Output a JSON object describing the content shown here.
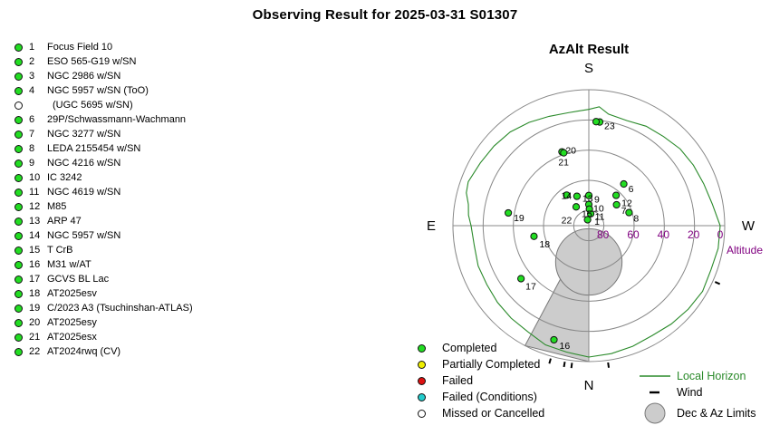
{
  "title": "Observing Result for 2025-03-31 S01307",
  "targets": [
    {
      "num": "1",
      "name": "Focus Field 10",
      "status": "completed"
    },
    {
      "num": "2",
      "name": "ESO 565-G19 w/SN",
      "status": "completed"
    },
    {
      "num": "3",
      "name": "NGC 2986 w/SN",
      "status": "completed"
    },
    {
      "num": "4",
      "name": "NGC 5957 w/SN (ToO)",
      "status": "completed"
    },
    {
      "num": "",
      "name": "(UGC 5695 w/SN)",
      "status": "missed"
    },
    {
      "num": "6",
      "name": "29P/Schwassmann-Wachmann",
      "status": "completed"
    },
    {
      "num": "7",
      "name": "NGC 3277 w/SN",
      "status": "completed"
    },
    {
      "num": "8",
      "name": "LEDA 2155454 w/SN",
      "status": "completed"
    },
    {
      "num": "9",
      "name": "NGC 4216 w/SN",
      "status": "completed"
    },
    {
      "num": "10",
      "name": "IC 3242",
      "status": "completed"
    },
    {
      "num": "11",
      "name": "NGC 4619 w/SN",
      "status": "completed"
    },
    {
      "num": "12",
      "name": "M85",
      "status": "completed"
    },
    {
      "num": "13",
      "name": "ARP 47",
      "status": "completed"
    },
    {
      "num": "14",
      "name": "NGC 5957 w/SN",
      "status": "completed"
    },
    {
      "num": "15",
      "name": "T CrB",
      "status": "completed"
    },
    {
      "num": "16",
      "name": "M31 w/AT",
      "status": "completed"
    },
    {
      "num": "17",
      "name": "GCVS BL Lac",
      "status": "completed"
    },
    {
      "num": "18",
      "name": "AT2025esv",
      "status": "completed"
    },
    {
      "num": "19",
      "name": "C/2023 A3 (Tsuchinshan-ATLAS)",
      "status": "completed"
    },
    {
      "num": "20",
      "name": "AT2025esy",
      "status": "completed"
    },
    {
      "num": "21",
      "name": "AT2025esx",
      "status": "completed"
    },
    {
      "num": "22",
      "name": "AT2024rwq (CV)",
      "status": "completed"
    }
  ],
  "status_colors": {
    "completed": "#22dd22",
    "partial": "#eeee00",
    "failed": "#dd1111",
    "failed_conditions": "#22cccc",
    "missed": "#ffffff"
  },
  "chart": {
    "title": "AzAlt Result",
    "cardinals": {
      "S": "S",
      "N": "N",
      "E": "E",
      "W": "W"
    },
    "altitude_label": "Altitude",
    "alt_ticks": [
      "80",
      "60",
      "40",
      "20",
      "0"
    ],
    "horizon_color": "#2a8a2a",
    "limit_color": "#cccccc",
    "alt_label_color": "#800080"
  },
  "chart_data": {
    "type": "scatter",
    "projection": "polar az-alt, zenith at center, south up, west right",
    "radial_axis": {
      "label": "Altitude",
      "ticks": [
        80,
        60,
        40,
        20,
        0
      ],
      "unit": "deg"
    },
    "points": [
      {
        "label": "1",
        "az": 189,
        "alt": 82
      },
      {
        "label": "6",
        "az": 220,
        "alt": 54
      },
      {
        "label": "7",
        "az": 233,
        "alt": 67
      },
      {
        "label": "8",
        "az": 252,
        "alt": 62
      },
      {
        "label": "9",
        "az": 180,
        "alt": 70
      },
      {
        "label": "10",
        "az": 180,
        "alt": 76
      },
      {
        "label": "11",
        "az": 182,
        "alt": 79
      },
      {
        "label": "12",
        "az": 222,
        "alt": 63
      },
      {
        "label": "13",
        "az": 158,
        "alt": 69
      },
      {
        "label": "14",
        "az": 144,
        "alt": 65
      },
      {
        "label": "15",
        "az": 146,
        "alt": 75
      },
      {
        "label": "16",
        "az": 17,
        "alt": 11
      },
      {
        "label": "17",
        "az": 52,
        "alt": 33
      },
      {
        "label": "18",
        "az": 79,
        "alt": 53
      },
      {
        "label": "19",
        "az": 99,
        "alt": 36
      },
      {
        "label": "20",
        "az": 160,
        "alt": 38
      },
      {
        "label": "21",
        "az": 161,
        "alt": 39
      },
      {
        "label": "22",
        "az": 168,
        "alt": 86
      },
      {
        "label": "23",
        "az": 186,
        "alt": 21
      },
      {
        "label": "",
        "az": 184,
        "alt": 21
      }
    ],
    "limit_circle": {
      "az": 0,
      "alt": 66,
      "radius_deg": 22
    },
    "limit_wedge_az": [
      0,
      28
    ],
    "horizon_alt_profile": [
      [
        0,
        3
      ],
      [
        10,
        5
      ],
      [
        20,
        6
      ],
      [
        30,
        9
      ],
      [
        40,
        10
      ],
      [
        50,
        11
      ],
      [
        60,
        12
      ],
      [
        70,
        12
      ],
      [
        80,
        13
      ],
      [
        90,
        12
      ],
      [
        95,
        10
      ],
      [
        100,
        9
      ],
      [
        105,
        6
      ],
      [
        110,
        5
      ],
      [
        120,
        7
      ],
      [
        130,
        8
      ],
      [
        140,
        9
      ],
      [
        150,
        11
      ],
      [
        160,
        13
      ],
      [
        170,
        14
      ],
      [
        180,
        13
      ],
      [
        185,
        11
      ],
      [
        190,
        15
      ],
      [
        200,
        16
      ],
      [
        210,
        14
      ],
      [
        220,
        13
      ],
      [
        230,
        11
      ],
      [
        240,
        10
      ],
      [
        250,
        9
      ],
      [
        260,
        7
      ],
      [
        270,
        3
      ],
      [
        280,
        3
      ],
      [
        290,
        4
      ],
      [
        300,
        3
      ],
      [
        310,
        4
      ],
      [
        320,
        5
      ],
      [
        330,
        6
      ],
      [
        340,
        5
      ],
      [
        350,
        4
      ],
      [
        360,
        3
      ]
    ],
    "wind_marks_az": [
      10,
      16,
      352,
      7,
      294
    ]
  },
  "legend": [
    {
      "label": "Completed",
      "key": "completed"
    },
    {
      "label": "Partially Completed",
      "key": "partial"
    },
    {
      "label": "Failed",
      "key": "failed"
    },
    {
      "label": "Failed (Conditions)",
      "key": "failed_conditions"
    },
    {
      "label": "Missed or Cancelled",
      "key": "missed"
    }
  ],
  "legend2": {
    "local_horizon": "Local Horizon",
    "wind": "Wind",
    "limits": "Dec & Az Limits"
  }
}
